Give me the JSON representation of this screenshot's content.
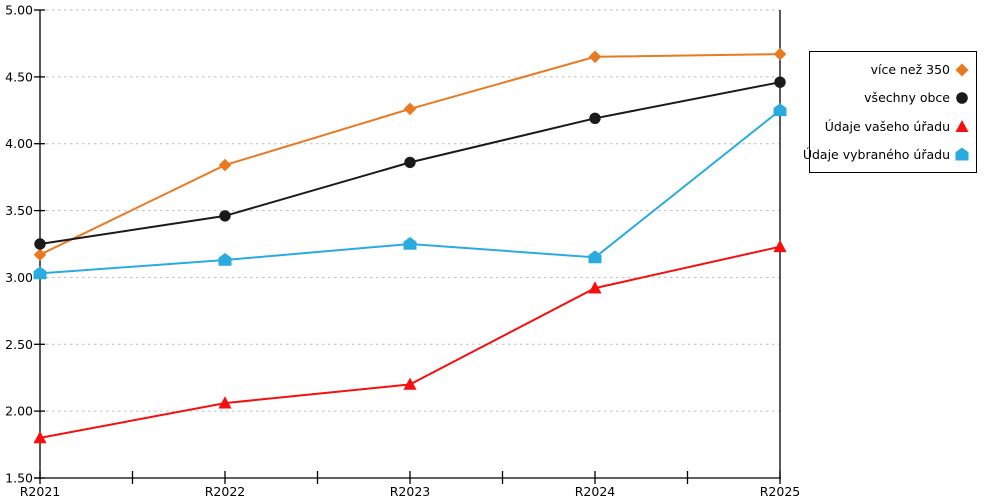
{
  "chart_data": {
    "type": "line",
    "categories": [
      "R2021",
      "R2022",
      "R2023",
      "R2024",
      "R2025"
    ],
    "series": [
      {
        "name": "více než 350",
        "color": "#E87A22",
        "marker": "diamond",
        "values": [
          3.17,
          3.84,
          4.26,
          4.65,
          4.67
        ]
      },
      {
        "name": "všechny obce",
        "color": "#1A1A1A",
        "marker": "circle",
        "values": [
          3.25,
          3.46,
          3.86,
          4.19,
          4.46
        ]
      },
      {
        "name": "Údaje vašeho úřadu",
        "color": "#F50F0F",
        "marker": "triangle",
        "values": [
          1.8,
          2.06,
          2.2,
          2.92,
          3.23
        ]
      },
      {
        "name": "Údaje vybraného úřadu",
        "color": "#29ABE2",
        "marker": "pentagon",
        "values": [
          3.03,
          3.13,
          3.25,
          3.15,
          4.25
        ]
      }
    ],
    "title": "",
    "xlabel": "",
    "ylabel": "",
    "ylim": [
      1.5,
      5.0
    ],
    "ytick_step": 0.5,
    "ytick_decimals": 2,
    "grid": "horizontal-dashed",
    "legend_position": "outside-top-right"
  },
  "style": {
    "background": "#FFFFFF",
    "axis_color": "#000000",
    "grid_color": "#BDBDBD",
    "tick_label_color": "#000000"
  }
}
